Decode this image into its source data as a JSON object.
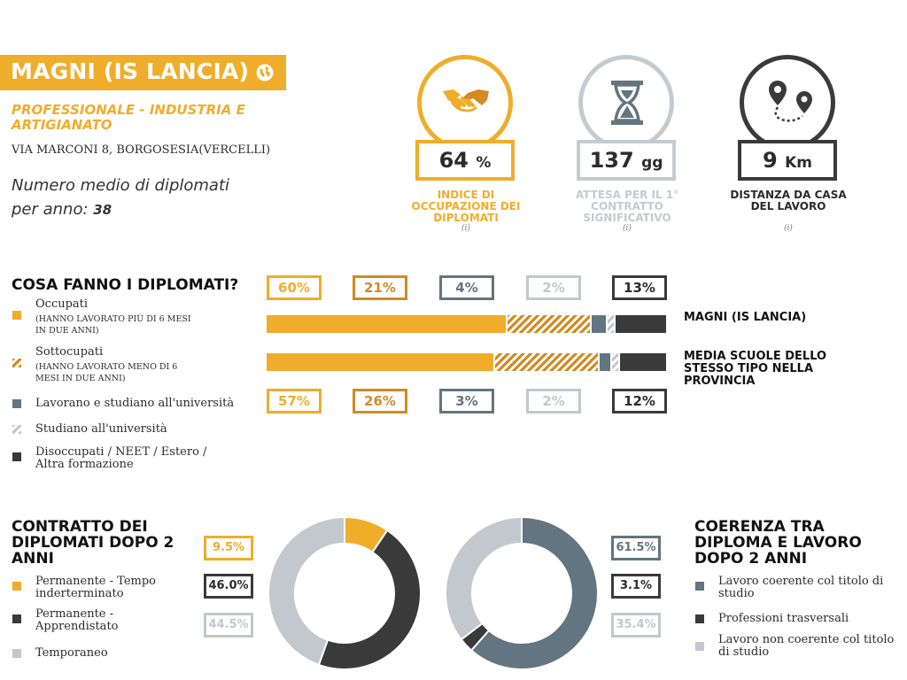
{
  "school": {
    "name": "MAGNI (IS LANCIA)",
    "type": "PROFESSIONALE - INDUSTRIA E ARTIGIANATO",
    "address": "VIA MARCONI 8, BORGOSESIA(VERCELLI)",
    "avg_graduates_label": "Numero medio di diplomati per anno:",
    "avg_graduates_value": "38"
  },
  "kpis": [
    {
      "value": "64",
      "unit": "%",
      "label": "INDICE DI OCCUPAZIONE DEI DIPLOMATI",
      "info": "(i)",
      "color": "#f0ad2b",
      "icon": "handshake-icon"
    },
    {
      "value": "137",
      "unit": "gg",
      "label": "ATTESA PER IL 1° CONTRATTO SIGNIFICATIVO",
      "info": "(i)",
      "color": "#c4cbd0",
      "icon": "hourglass-icon"
    },
    {
      "value": "9",
      "unit": "Km",
      "label": "DISTANZA DA CASA DEL LAVORO",
      "info": "(i)",
      "color": "#3a3a3a",
      "icon": "map-pins-icon"
    }
  ],
  "what_they_do": {
    "title": "COSA FANNO I DIPLOMATI?",
    "legend": [
      {
        "label": "Occupati",
        "sub": "(HANNO LAVORATO PIÙ DI 6 MESI IN DUE ANNI)",
        "swatch": "solid-orange"
      },
      {
        "label": "Sottocupati",
        "sub": "(HANNO LAVORATO MENO DI 6 MESI IN DUE ANNI)",
        "swatch": "hatch-orange"
      },
      {
        "label": "Lavorano e studiano all'università",
        "sub": "",
        "swatch": "solid-slate"
      },
      {
        "label": "Studiano all'università",
        "sub": "",
        "swatch": "hatch-grey"
      },
      {
        "label": "Disoccupati / NEET / Estero / Altra formazione",
        "sub": "",
        "swatch": "solid-dark"
      }
    ],
    "school_row_label": "MAGNI (IS LANCIA)",
    "avg_row_label": "MEDIA SCUOLE DELLO STESSO TIPO NELLA PROVINCIA"
  },
  "contract": {
    "title": "CONTRATTO DEI DIPLOMATI DOPO 2 ANNI",
    "legend": [
      "Permanente - Tempo inderterminato",
      "Permanente - Apprendistato",
      "Temporaneo"
    ]
  },
  "coherence": {
    "title": "COERENZA TRA DIPLOMA E LAVORO DOPO 2 ANNI",
    "legend": [
      "Lavoro coerente col titolo di studio",
      "Professioni trasversali",
      "Lavoro non coerente col titolo di studio"
    ]
  },
  "colors": {
    "orange": "#f0ad2b",
    "orange_dark": "#d28a22",
    "slate": "#627580",
    "light_grey": "#c2c8cd",
    "dark": "#3a3a3a"
  },
  "chart_data": [
    {
      "type": "bar",
      "title": "COSA FANNO I DIPLOMATI?",
      "stacked": true,
      "orientation": "horizontal",
      "categories": [
        "MAGNI (IS LANCIA)",
        "MEDIA SCUOLE DELLO STESSO TIPO NELLA PROVINCIA"
      ],
      "series": [
        {
          "name": "Occupati",
          "values": [
            60,
            57
          ],
          "labels": [
            "60%",
            "57%"
          ],
          "color": "#f0ad2b",
          "pattern": "solid"
        },
        {
          "name": "Sottocupati",
          "values": [
            21,
            26
          ],
          "labels": [
            "21%",
            "26%"
          ],
          "color": "#d28a22",
          "pattern": "hatch"
        },
        {
          "name": "Lavorano e studiano all'università",
          "values": [
            4,
            3
          ],
          "labels": [
            "4%",
            "3%"
          ],
          "color": "#627580",
          "pattern": "solid"
        },
        {
          "name": "Studiano all'università",
          "values": [
            2,
            2
          ],
          "labels": [
            "2%",
            "2%"
          ],
          "color": "#c2c8cd",
          "pattern": "hatch"
        },
        {
          "name": "Disoccupati / NEET / Estero / Altra formazione",
          "values": [
            13,
            12
          ],
          "labels": [
            "13%",
            "12%"
          ],
          "color": "#3a3a3a",
          "pattern": "solid"
        }
      ]
    },
    {
      "type": "pie",
      "donut": true,
      "title": "CONTRATTO DEI DIPLOMATI DOPO 2 ANNI",
      "categories": [
        "Permanente - Tempo inderterminato",
        "Permanente - Apprendistato",
        "Temporaneo"
      ],
      "values": [
        9.5,
        46.0,
        44.5
      ],
      "labels": [
        "9.5%",
        "46.0%",
        "44.5%"
      ],
      "colors": [
        "#f0ad2b",
        "#3a3a3a",
        "#c2c8cd"
      ]
    },
    {
      "type": "pie",
      "donut": true,
      "title": "COERENZA TRA DIPLOMA E LAVORO DOPO 2 ANNI",
      "categories": [
        "Lavoro coerente col titolo di studio",
        "Professioni trasversali",
        "Lavoro non coerente col titolo di studio"
      ],
      "values": [
        61.5,
        3.1,
        35.4
      ],
      "labels": [
        "61.5%",
        "3.1%",
        "35.4%"
      ],
      "colors": [
        "#627580",
        "#3a3a3a",
        "#c2c8cd"
      ]
    }
  ]
}
